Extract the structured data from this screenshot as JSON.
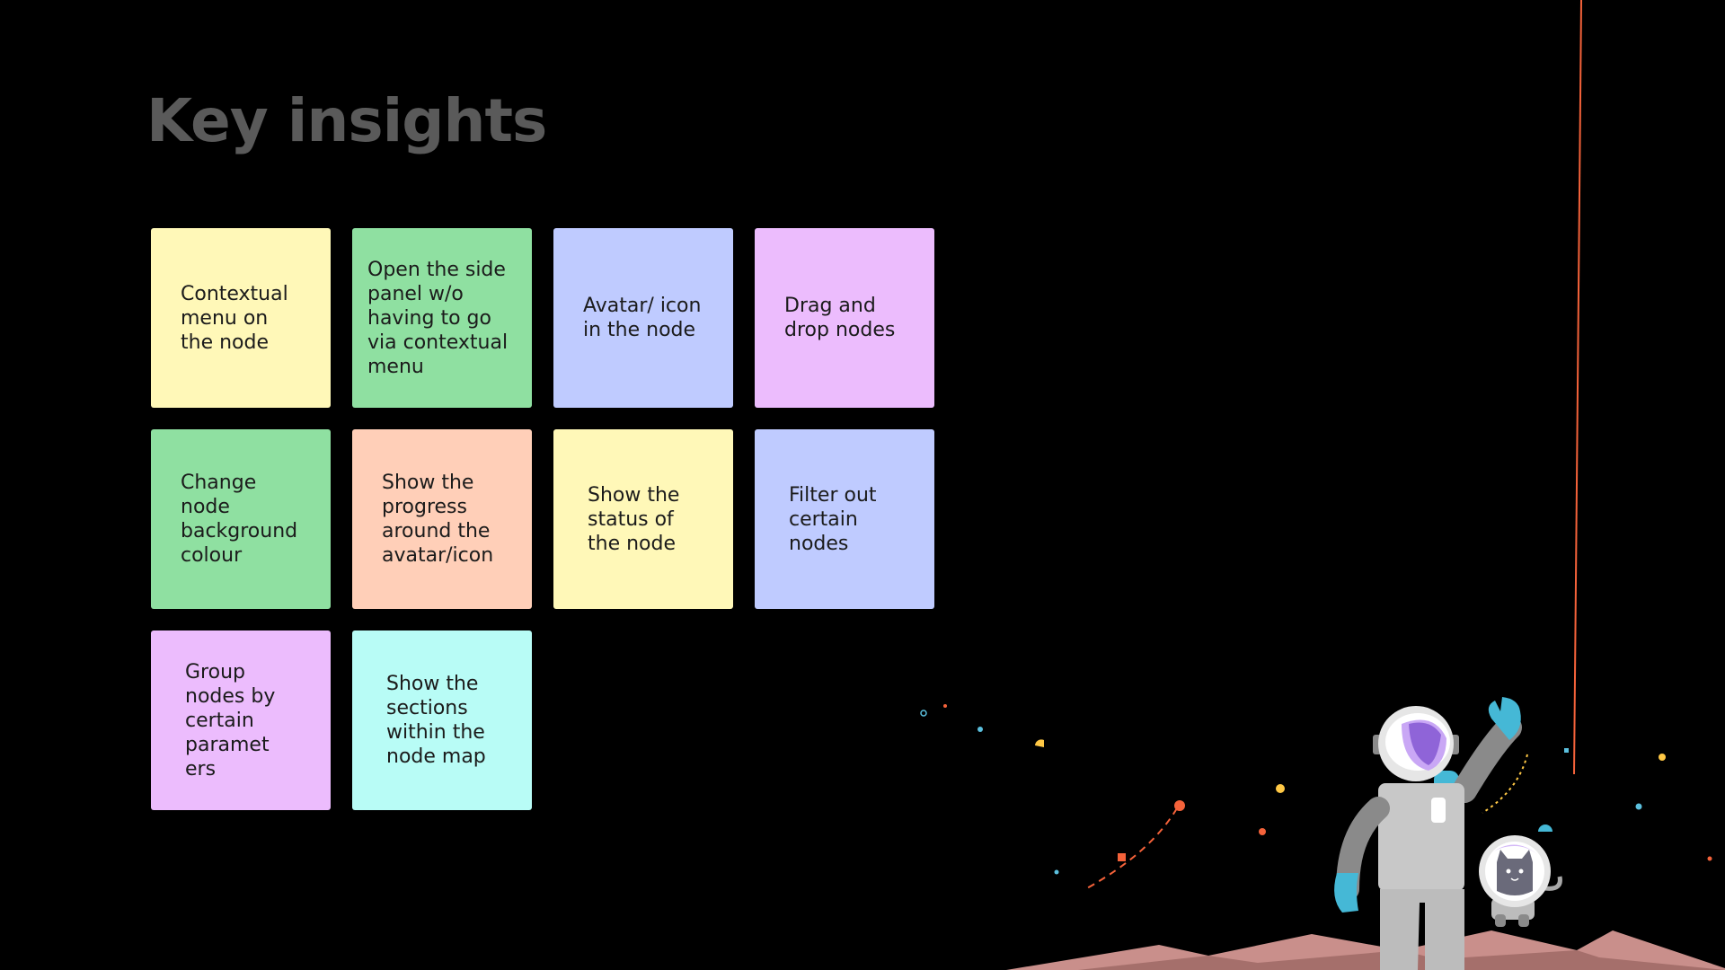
{
  "title": "Key insights",
  "notes": [
    {
      "text": "Contextual\nmenu on\nthe node",
      "color": "#fff8b8"
    },
    {
      "text": "Open the side\npanel w/o\nhaving to go\nvia contextual\nmenu",
      "color": "#8fe0a1"
    },
    {
      "text": "Avatar/ icon\nin the node",
      "color": "#bfcbff"
    },
    {
      "text": "Drag and\ndrop nodes",
      "color": "#ecbcfd"
    },
    {
      "text": "Change\nnode\nbackground\ncolour",
      "color": "#8fe0a1"
    },
    {
      "text": "Show the\nprogress\naround the\navatar/icon",
      "color": "#ffcfb8"
    },
    {
      "text": "Show the\nstatus of\nthe node",
      "color": "#fff8b8"
    },
    {
      "text": "Filter out\ncertain\nnodes",
      "color": "#bfcbff"
    },
    {
      "text": "Group\nnodes by\ncertain\nparamet\ners",
      "color": "#ecbcfd"
    },
    {
      "text": "Show the\nsections\nwithin the\nnode map",
      "color": "#b8fcf6"
    }
  ]
}
